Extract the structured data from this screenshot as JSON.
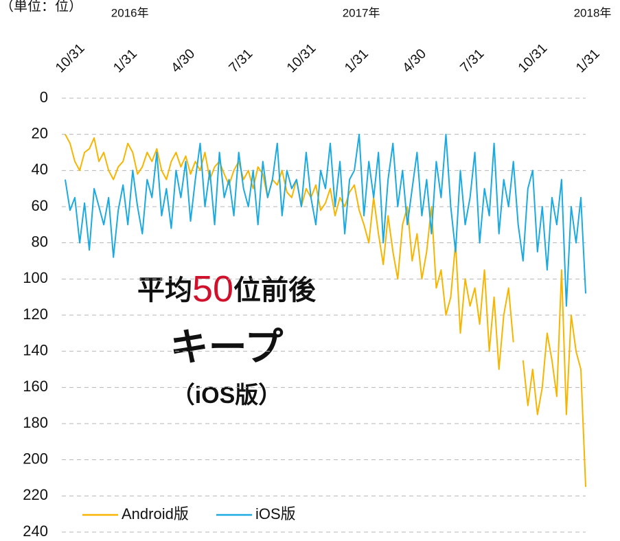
{
  "chart_data": {
    "type": "line",
    "unit_label": "（単位：位）",
    "years": [
      "2016年",
      "2017年",
      "2018年"
    ],
    "annotation": {
      "line1": [
        "平均",
        "50",
        "位前後"
      ],
      "line2": "キープ",
      "line3": "（iOS版）"
    },
    "categories": [
      "10/31",
      null,
      null,
      null,
      null,
      null,
      null,
      null,
      null,
      null,
      null,
      null,
      "1/31",
      null,
      null,
      null,
      null,
      null,
      null,
      null,
      null,
      null,
      null,
      null,
      "4/30",
      null,
      null,
      null,
      null,
      null,
      null,
      null,
      null,
      null,
      null,
      null,
      "7/31",
      null,
      null,
      null,
      null,
      null,
      null,
      null,
      null,
      null,
      null,
      null,
      "10/31",
      null,
      null,
      null,
      null,
      null,
      null,
      null,
      null,
      null,
      null,
      null,
      "1/31",
      null,
      null,
      null,
      null,
      null,
      null,
      null,
      null,
      null,
      null,
      null,
      "4/30",
      null,
      null,
      null,
      null,
      null,
      null,
      null,
      null,
      null,
      null,
      null,
      "7/31",
      null,
      null,
      null,
      null,
      null,
      null,
      null,
      null,
      null,
      null,
      null,
      "10/31",
      null,
      null,
      null,
      null,
      null,
      null,
      null,
      null,
      null,
      null,
      null,
      "1/31"
    ],
    "series": [
      {
        "name": "Android版",
        "color": "#f7b500",
        "values": [
          20,
          25,
          35,
          40,
          30,
          28,
          22,
          35,
          30,
          40,
          45,
          38,
          35,
          25,
          30,
          42,
          38,
          30,
          35,
          28,
          40,
          45,
          35,
          30,
          38,
          32,
          42,
          35,
          40,
          30,
          45,
          38,
          35,
          42,
          48,
          40,
          35,
          45,
          40,
          50,
          38,
          42,
          55,
          45,
          48,
          40,
          52,
          55,
          45,
          60,
          50,
          55,
          48,
          62,
          58,
          50,
          65,
          55,
          60,
          52,
          48,
          62,
          70,
          80,
          55,
          75,
          92,
          65,
          85,
          100,
          70,
          60,
          90,
          75,
          100,
          85,
          60,
          105,
          95,
          120,
          110,
          80,
          130,
          100,
          115,
          105,
          125,
          95,
          140,
          110,
          150,
          120,
          105,
          135,
          null,
          145,
          170,
          150,
          175,
          160,
          130,
          145,
          165,
          95,
          175,
          120,
          140,
          150,
          215
        ]
      },
      {
        "name": "iOS版",
        "color": "#1aa9e0",
        "values": [
          45,
          62,
          55,
          80,
          58,
          84,
          50,
          60,
          70,
          55,
          88,
          62,
          48,
          70,
          40,
          60,
          75,
          45,
          55,
          30,
          65,
          50,
          72,
          40,
          55,
          35,
          68,
          45,
          25,
          60,
          40,
          70,
          30,
          55,
          45,
          65,
          30,
          50,
          60,
          40,
          70,
          35,
          55,
          45,
          25,
          65,
          40,
          50,
          45,
          60,
          30,
          55,
          70,
          40,
          50,
          25,
          60,
          35,
          75,
          45,
          40,
          20,
          65,
          35,
          55,
          30,
          80,
          45,
          25,
          60,
          40,
          70,
          50,
          30,
          65,
          45,
          75,
          35,
          55,
          20,
          60,
          85,
          40,
          70,
          55,
          30,
          80,
          50,
          65,
          25,
          75,
          45,
          60,
          35,
          70,
          90,
          50,
          40,
          85,
          60,
          95,
          55,
          70,
          45,
          115,
          60,
          80,
          55,
          108
        ]
      }
    ],
    "ylim": [
      0,
      240
    ],
    "yticks": [
      0,
      20,
      40,
      60,
      80,
      100,
      120,
      140,
      160,
      180,
      200,
      220,
      240
    ],
    "inverted": true,
    "grid": true
  }
}
